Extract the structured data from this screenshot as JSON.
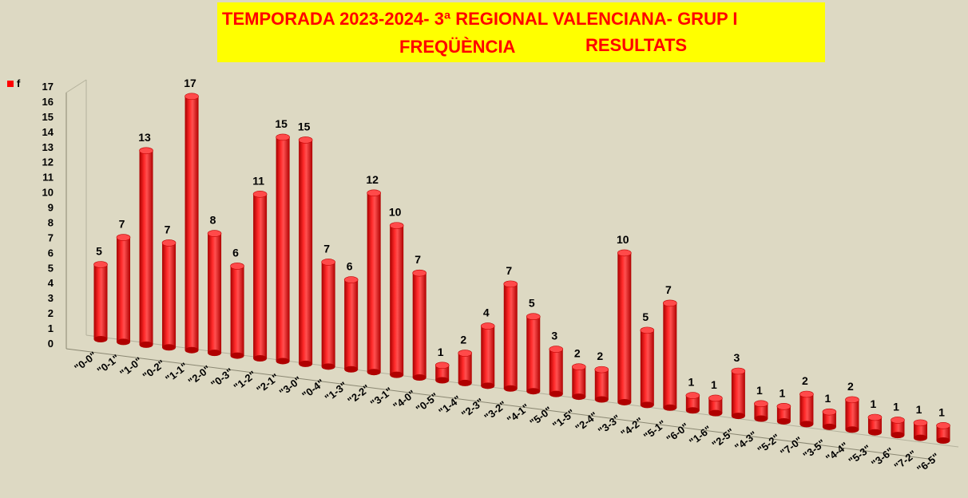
{
  "colors": {
    "background": "#ddd9c3",
    "title_bg": "#ffff00",
    "title_text": "#ff0000",
    "bar": "#ff0000"
  },
  "title": {
    "line1": "TEMPORADA 2023-2024- 3ª REGIONAL VALENCIANA- GRUP I",
    "line2a": "FREQÜÈNCIA",
    "line2b": "RESULTATS"
  },
  "chart_data": {
    "type": "bar",
    "title": "TEMPORADA 2023-2024- 3ª REGIONAL VALENCIANA- GRUP I FREQÜÈNCIA RESULTATS",
    "categories": [
      "\"0-0\"",
      "\"0-1\"",
      "\"1-0\"",
      "\"0-2\"",
      "\"1-1\"",
      "\"2-0\"",
      "\"0-3\"",
      "\"1-2\"",
      "\"2-1\"",
      "\"3-0\"",
      "\"0-4\"",
      "\"1-3\"",
      "\"2-2\"",
      "\"3-1\"",
      "\"4-0\"",
      "\"0-5\"",
      "\"1-4\"",
      "\"2-3\"",
      "\"3-2\"",
      "\"4-1\"",
      "\"5-0\"",
      "\"1-5\"",
      "\"2-4\"",
      "\"3-3\"",
      "\"4-2\"",
      "\"5-1\"",
      "\"6-0\"",
      "\"1-6\"",
      "\"2-5\"",
      "\"4-3\"",
      "\"5-2\"",
      "\"7-0\"",
      "\"3-5\"",
      "\"4-4\"",
      "\"5-3\"",
      "\"3-6\"",
      "\"7-2\"",
      "\"6-5\""
    ],
    "series": [
      {
        "name": "f",
        "values": [
          5,
          7,
          13,
          7,
          17,
          8,
          6,
          11,
          15,
          15,
          7,
          6,
          12,
          10,
          7,
          1,
          2,
          4,
          7,
          5,
          3,
          2,
          2,
          10,
          5,
          7,
          1,
          1,
          3,
          1,
          1,
          2,
          1,
          2,
          1,
          1,
          1,
          1
        ]
      }
    ],
    "yticks": [
      "0",
      "1",
      "2",
      "3",
      "4",
      "5",
      "6",
      "7",
      "8",
      "9",
      "10",
      "11",
      "12",
      "13",
      "14",
      "15",
      "16",
      "17"
    ],
    "ylim": [
      0,
      17
    ],
    "legend_position": "top-left",
    "grid": false,
    "data_labels": true
  }
}
